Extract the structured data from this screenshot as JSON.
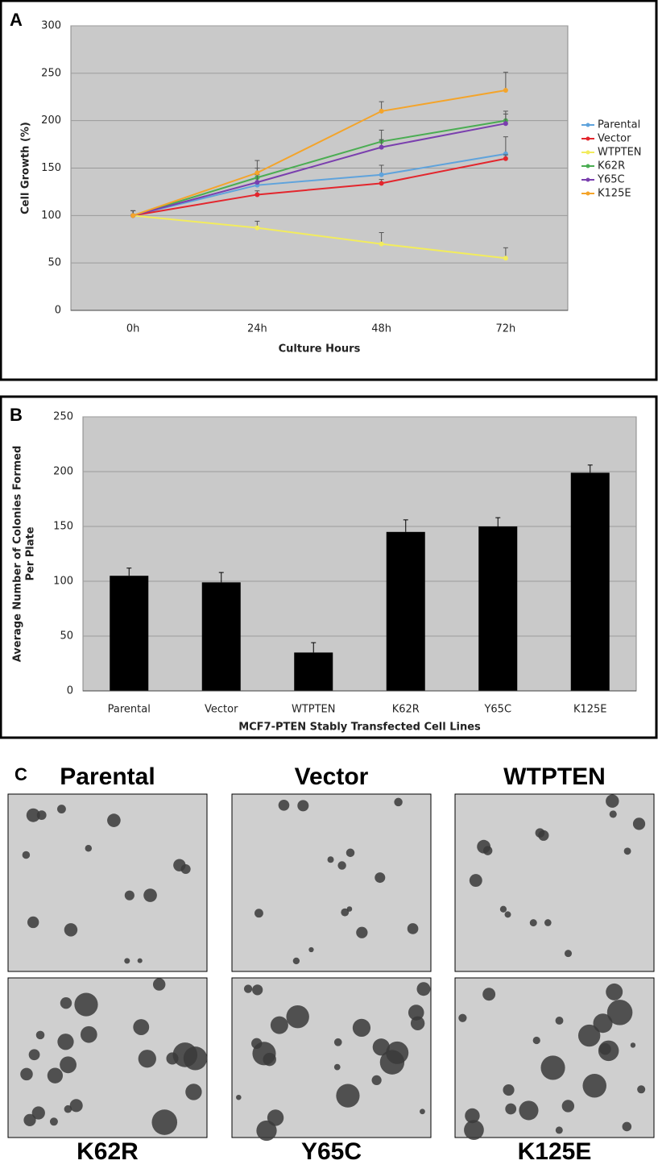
{
  "chart_data": [
    {
      "type": "line",
      "label": "A",
      "x_label": "Culture Hours",
      "y_label": [
        "Cell Growth (%)"
      ],
      "categories": [
        "0h",
        "24h",
        "48h",
        "72h"
      ],
      "ylim": [
        0,
        300
      ],
      "yticks": [
        0,
        50,
        100,
        150,
        200,
        250,
        300
      ],
      "grid": true,
      "series": [
        {
          "name": "Parental",
          "color": "#5fa3dc",
          "values": [
            100,
            132,
            143,
            165
          ],
          "errors": [
            5,
            8,
            10,
            18
          ]
        },
        {
          "name": "Vector",
          "color": "#e3262d",
          "values": [
            100,
            122,
            134,
            160
          ],
          "errors": [
            5,
            4,
            4,
            4
          ]
        },
        {
          "name": "WTPTEN",
          "color": "#f2ec5e",
          "values": [
            100,
            87,
            70,
            55
          ],
          "errors": [
            5,
            7,
            12,
            11
          ]
        },
        {
          "name": "K62R",
          "color": "#4aad52",
          "values": [
            100,
            140,
            178,
            200
          ],
          "errors": [
            5,
            10,
            12,
            10
          ]
        },
        {
          "name": "Y65C",
          "color": "#7a3fae",
          "values": [
            100,
            135,
            172,
            197
          ],
          "errors": [
            5,
            8,
            8,
            10
          ]
        },
        {
          "name": "K125E",
          "color": "#f4a42a",
          "values": [
            100,
            145,
            210,
            232
          ],
          "errors": [
            5,
            13,
            10,
            19
          ]
        }
      ]
    },
    {
      "type": "bar",
      "label": "B",
      "x_label": "MCF7-PTEN Stably Transfected Cell Lines",
      "y_label": [
        "Average Number of Colonies Formed",
        "Per Plate"
      ],
      "categories": [
        "Parental",
        "Vector",
        "WTPTEN",
        "K62R",
        "Y65C",
        "K125E"
      ],
      "values": [
        105,
        99,
        35,
        145,
        150,
        199
      ],
      "errors": [
        7,
        9,
        9,
        11,
        8,
        7
      ],
      "color": "#000000",
      "ylim": [
        0,
        250
      ],
      "yticks": [
        0,
        50,
        100,
        150,
        200,
        250
      ],
      "grid": true
    }
  ],
  "micrographs": {
    "label": "C",
    "titles": [
      "Parental",
      "Vector",
      "WTPTEN",
      "K62R",
      "Y65C",
      "K125E"
    ]
  }
}
